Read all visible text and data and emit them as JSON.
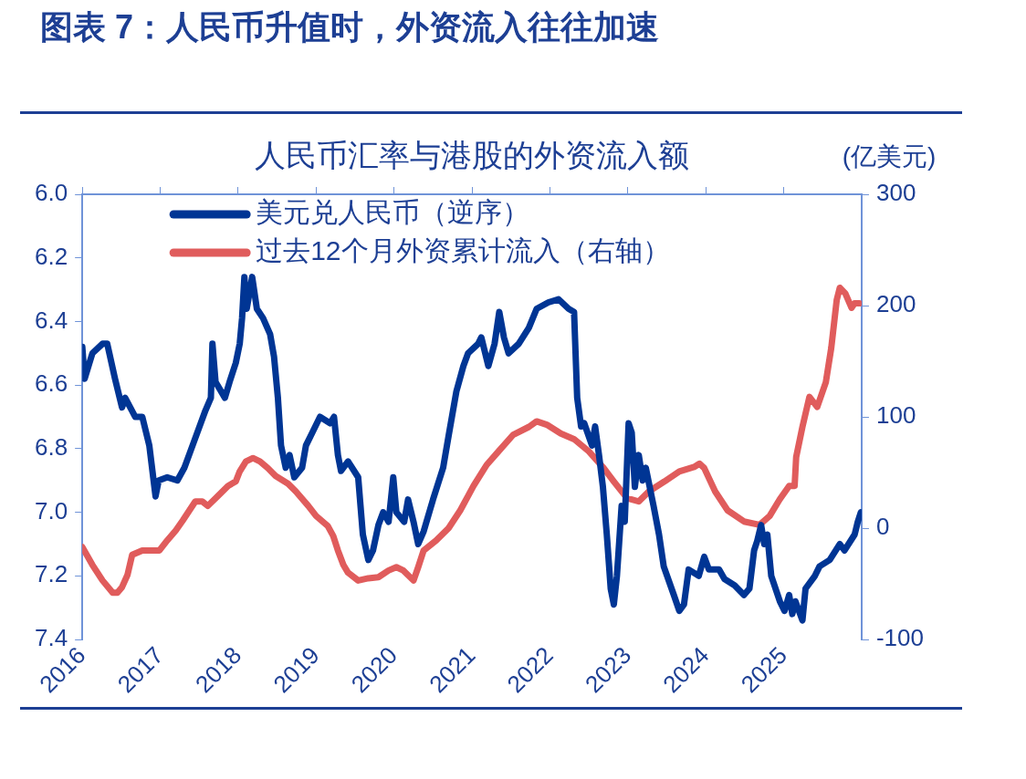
{
  "chart_data": {
    "type": "line",
    "title": "图表 7：人民币升值时，外资流入往往加速",
    "subtitle": "人民币汇率与港股的外资流入额",
    "y2label": "(亿美元)",
    "xlim": [
      2016,
      2026
    ],
    "xticks": [
      2016,
      2017,
      2018,
      2019,
      2020,
      2021,
      2022,
      2023,
      2024,
      2025
    ],
    "ylim": [
      7.4,
      6.0
    ],
    "yticks": [
      {
        "value": 6,
        "label": "6.0"
      },
      6.2,
      6.4,
      6.6,
      6.8,
      {
        "value": 7,
        "label": "7.0"
      },
      7.2,
      7.4
    ],
    "y2lim": [
      -100,
      300
    ],
    "y2ticks": [
      -100,
      0,
      100,
      200,
      300
    ],
    "grid": false,
    "legend": "top left",
    "marker": "none",
    "line_style": "solid",
    "series": [
      {
        "name": "美元兑人民币（逆序）",
        "color": "#003594",
        "axis": "y",
        "x": [
          2016.0,
          2016.03,
          2016.13,
          2016.26,
          2016.32,
          2016.42,
          2016.51,
          2016.55,
          2016.68,
          2016.77,
          2016.86,
          2016.91,
          2016.94,
          2016.98,
          2017.09,
          2017.22,
          2017.31,
          2017.43,
          2017.58,
          2017.65,
          2017.67,
          2017.71,
          2017.83,
          2017.89,
          2017.97,
          2018.02,
          2018.05,
          2018.08,
          2018.11,
          2018.18,
          2018.24,
          2018.32,
          2018.41,
          2018.46,
          2018.51,
          2018.55,
          2018.61,
          2018.66,
          2018.72,
          2018.82,
          2018.87,
          2018.95,
          2019.05,
          2019.18,
          2019.23,
          2019.28,
          2019.32,
          2019.41,
          2019.54,
          2019.6,
          2019.67,
          2019.73,
          2019.8,
          2019.86,
          2019.93,
          2019.99,
          2020.03,
          2020.13,
          2020.18,
          2020.25,
          2020.31,
          2020.38,
          2020.5,
          2020.63,
          2020.7,
          2020.8,
          2020.89,
          2020.95,
          2021.08,
          2021.12,
          2021.21,
          2021.29,
          2021.35,
          2021.41,
          2021.47,
          2021.6,
          2021.73,
          2021.83,
          2021.98,
          2022.11,
          2022.24,
          2022.31,
          2022.35,
          2022.4,
          2022.44,
          2022.54,
          2022.58,
          2022.63,
          2022.68,
          2022.73,
          2022.78,
          2022.82,
          2022.86,
          2022.92,
          2022.96,
          2023.01,
          2023.05,
          2023.09,
          2023.14,
          2023.19,
          2023.23,
          2023.33,
          2023.4,
          2023.46,
          2023.59,
          2023.66,
          2023.72,
          2023.78,
          2023.91,
          2023.98,
          2024.04,
          2024.17,
          2024.24,
          2024.37,
          2024.49,
          2024.56,
          2024.62,
          2024.66,
          2024.71,
          2024.75,
          2024.79,
          2024.84,
          2024.95,
          2025.01,
          2025.07,
          2025.11,
          2025.15,
          2025.24,
          2025.28,
          2025.4,
          2025.46,
          2025.59,
          2025.72,
          2025.78,
          2025.91,
          2025.95,
          2025.99
        ],
        "values": [
          6.48,
          6.58,
          6.5,
          6.47,
          6.47,
          6.58,
          6.67,
          6.64,
          6.7,
          6.7,
          6.79,
          6.89,
          6.95,
          6.9,
          6.89,
          6.9,
          6.86,
          6.78,
          6.68,
          6.64,
          6.47,
          6.59,
          6.64,
          6.59,
          6.53,
          6.47,
          6.39,
          6.26,
          6.36,
          6.26,
          6.36,
          6.39,
          6.44,
          6.51,
          6.64,
          6.79,
          6.86,
          6.82,
          6.89,
          6.86,
          6.79,
          6.75,
          6.7,
          6.72,
          6.7,
          6.82,
          6.87,
          6.84,
          6.89,
          7.07,
          7.15,
          7.12,
          7.04,
          7.0,
          7.03,
          6.89,
          7.0,
          7.03,
          6.96,
          7.03,
          7.1,
          7.06,
          6.96,
          6.86,
          6.76,
          6.62,
          6.54,
          6.5,
          6.47,
          6.45,
          6.54,
          6.47,
          6.37,
          6.45,
          6.5,
          6.47,
          6.42,
          6.36,
          6.34,
          6.33,
          6.36,
          6.37,
          6.64,
          6.73,
          6.72,
          6.79,
          6.73,
          6.82,
          6.92,
          7.07,
          7.24,
          7.29,
          7.2,
          6.98,
          7.03,
          6.72,
          6.75,
          6.92,
          6.82,
          6.9,
          6.86,
          6.98,
          7.07,
          7.17,
          7.26,
          7.31,
          7.29,
          7.18,
          7.2,
          7.14,
          7.18,
          7.18,
          7.21,
          7.23,
          7.26,
          7.24,
          7.12,
          7.09,
          7.04,
          7.1,
          7.07,
          7.2,
          7.28,
          7.31,
          7.26,
          7.32,
          7.28,
          7.34,
          7.24,
          7.2,
          7.17,
          7.15,
          7.1,
          7.12,
          7.07,
          7.03,
          7.0
        ]
      },
      {
        "name": "过去12个月外资累计流入（右轴）",
        "color": "#e05c5c",
        "axis": "y2",
        "x": [
          2016.0,
          2016.13,
          2016.26,
          2016.39,
          2016.45,
          2016.51,
          2016.58,
          2016.64,
          2016.77,
          2016.9,
          2016.99,
          2017.09,
          2017.2,
          2017.29,
          2017.45,
          2017.54,
          2017.61,
          2017.74,
          2017.87,
          2017.97,
          2018.02,
          2018.1,
          2018.19,
          2018.28,
          2018.38,
          2018.48,
          2018.64,
          2018.74,
          2018.9,
          2019.0,
          2019.15,
          2019.22,
          2019.28,
          2019.35,
          2019.41,
          2019.54,
          2019.67,
          2019.8,
          2019.93,
          2020.03,
          2020.12,
          2020.25,
          2020.31,
          2020.38,
          2020.54,
          2020.7,
          2020.85,
          2021.02,
          2021.19,
          2021.34,
          2021.53,
          2021.73,
          2021.83,
          2021.96,
          2022.14,
          2022.31,
          2022.5,
          2022.69,
          2022.82,
          2022.99,
          2023.14,
          2023.27,
          2023.47,
          2023.66,
          2023.85,
          2023.92,
          2023.98,
          2024.12,
          2024.28,
          2024.49,
          2024.69,
          2024.82,
          2024.95,
          2025.07,
          2025.14,
          2025.16,
          2025.24,
          2025.33,
          2025.43,
          2025.54,
          2025.61,
          2025.68,
          2025.72,
          2025.79,
          2025.87,
          2025.91,
          2025.97
        ],
        "values": [
          -17,
          -33,
          -47,
          -58,
          -58,
          -53,
          -42,
          -24,
          -20,
          -20,
          -20,
          -11,
          -2,
          7,
          24,
          24,
          20,
          29,
          38,
          42,
          51,
          60,
          63,
          60,
          54,
          47,
          40,
          33,
          20,
          11,
          2,
          -7,
          -20,
          -33,
          -40,
          -47,
          -45,
          -44,
          -38,
          -35,
          -38,
          -47,
          -35,
          -20,
          -11,
          0,
          16,
          38,
          57,
          69,
          84,
          91,
          96,
          93,
          85,
          80,
          69,
          54,
          42,
          27,
          24,
          33,
          42,
          51,
          55,
          58,
          54,
          33,
          16,
          6,
          3,
          11,
          26,
          38,
          38,
          64,
          91,
          118,
          109,
          131,
          162,
          205,
          216,
          211,
          198,
          202,
          202
        ]
      }
    ]
  }
}
